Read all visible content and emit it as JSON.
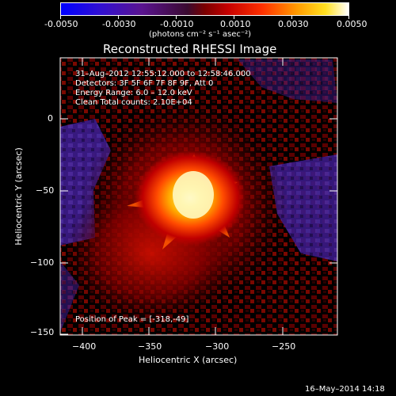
{
  "colorbar": {
    "tick_labels": [
      "-0.0050",
      "-0.0030",
      "-0.0010",
      "0.0010",
      "0.0030",
      "0.0050"
    ],
    "units": "(photons cm⁻² s⁻¹ asec⁻²)",
    "colors": [
      "#0000ff",
      "#3a10c8",
      "#5a1080",
      "#4a0a10",
      "#b30000",
      "#ff3000",
      "#ff9a00",
      "#ffe020",
      "#ffffff"
    ]
  },
  "title": "Reconstructed RHESSI Image",
  "info": {
    "time": "31–Aug–2012 12:55:12.000 to 12:58:46.000",
    "detectors": "Detectors: 3F 5F 6F 7F 8F 9F, Att 0",
    "energy": "Energy Range: 6.0 – 12.0 keV",
    "clean": "Clean     Total counts: 2.10E+04"
  },
  "peak_label": "Position of Peak = [-318,-49]",
  "axes": {
    "x_label": "Heliocentric X (arcsec)",
    "y_label": "Heliocentric Y (arcsec)",
    "x_ticks": [
      "−400",
      "−350",
      "−300",
      "−250"
    ],
    "y_ticks": [
      "0",
      "−50",
      "−100",
      "−150"
    ]
  },
  "footer_timestamp": "16–May–2014 14:18"
}
